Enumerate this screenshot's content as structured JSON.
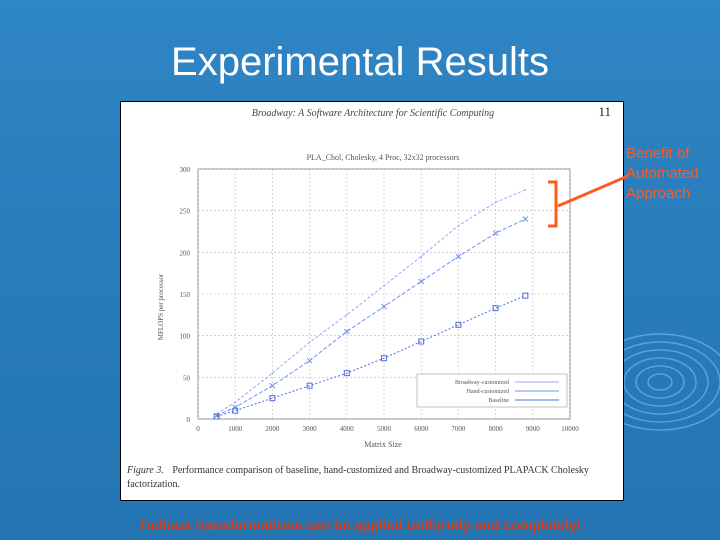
{
  "slide": {
    "title": "Experimental Results",
    "footer": "Tedious transformations can be applied uniformly and completely!"
  },
  "callout": {
    "lines": [
      "Benefit of",
      "Automated",
      "Approach"
    ],
    "color": "#ff5a1f"
  },
  "paper": {
    "header": "Broadway: A Software Architecture for Scientific Computing",
    "page_number": "11",
    "caption_label": "Figure 3.",
    "caption_text": "Performance comparison of baseline, hand-customized and Broadway-customized PLAPACK Cholesky factorization."
  },
  "chart_data": {
    "type": "line",
    "title": "PLA_Chol, Cholesky, 4 Proc, 32x32 processors",
    "xlabel": "Matrix Size",
    "ylabel": "MFLOPS per processor",
    "xlim": [
      0,
      10000
    ],
    "ylim": [
      0,
      300
    ],
    "x_ticks": [
      0,
      1000,
      2000,
      3000,
      4000,
      5000,
      6000,
      7000,
      8000,
      9000,
      10000
    ],
    "y_ticks": [
      0,
      50,
      100,
      150,
      200,
      250,
      300
    ],
    "x_tick_labels": [
      "0",
      "1000",
      "2000",
      "3000",
      "4000",
      "5000",
      "6000",
      "7000",
      "8000",
      "9000",
      "10000"
    ],
    "y_tick_labels": [
      "0",
      "50",
      "100",
      "150",
      "200",
      "250",
      "300"
    ],
    "grid": true,
    "legend_position": "bottom-right",
    "series": [
      {
        "name": "Broadway-customized",
        "color": "#a0a0ff",
        "marker": "none",
        "x": [
          500,
          1000,
          2000,
          3000,
          4000,
          5000,
          6000,
          7000,
          8000,
          8800
        ],
        "y": [
          6,
          20,
          55,
          92,
          125,
          160,
          195,
          232,
          260,
          275
        ]
      },
      {
        "name": "Hand-customized",
        "color": "#7090f0",
        "marker": "x",
        "x": [
          500,
          1000,
          2000,
          3000,
          4000,
          5000,
          6000,
          7000,
          8000,
          8800
        ],
        "y": [
          4,
          14,
          40,
          70,
          105,
          135,
          165,
          195,
          223,
          240
        ]
      },
      {
        "name": "Baseline",
        "color": "#5070e0",
        "marker": "square",
        "x": [
          500,
          1000,
          2000,
          3000,
          4000,
          5000,
          6000,
          7000,
          8000,
          8800
        ],
        "y": [
          3,
          10,
          25,
          40,
          55,
          73,
          93,
          113,
          133,
          148
        ]
      }
    ]
  }
}
